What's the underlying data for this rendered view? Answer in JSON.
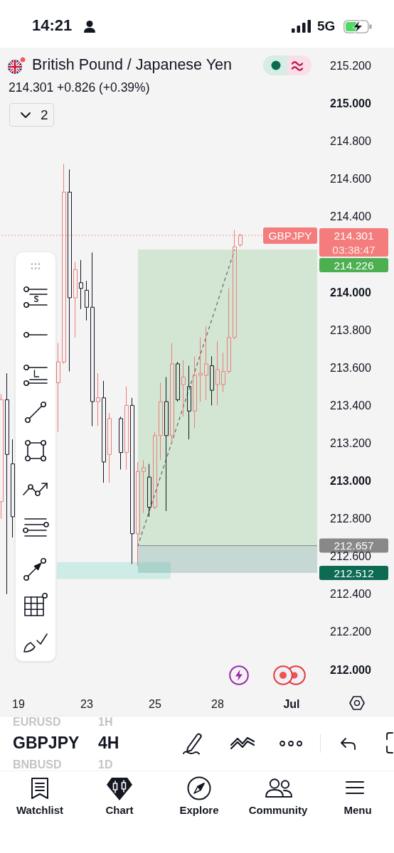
{
  "chart_data": {
    "type": "candlestick",
    "title": "British Pound / Japanese Yen",
    "subtitle": "214.301 +0.826 (+0.39%)",
    "categories": [
      null,
      null,
      null,
      "19",
      null,
      null,
      null,
      null,
      null,
      null,
      null,
      null,
      null,
      null,
      null,
      "23",
      null,
      null,
      null,
      null,
      null,
      null,
      null,
      null,
      null,
      null,
      null,
      "25",
      null,
      null,
      null,
      null,
      null,
      null,
      null,
      null,
      null,
      null,
      "28",
      null,
      null,
      null,
      null,
      null,
      null,
      null,
      null,
      null,
      null,
      null,
      null,
      "Jul",
      null,
      null,
      null,
      null
    ],
    "series": [
      {
        "ohlc": [
          [
            212.89,
            213.46,
            212.8,
            213.43
          ],
          [
            213.43,
            213.57,
            212.4,
            213.14
          ],
          [
            213.09,
            213.22,
            212.7,
            212.81
          ],
          null,
          null,
          null,
          null,
          null,
          null,
          null,
          [
            213.52,
            213.73,
            213.26,
            213.63
          ],
          [
            213.63,
            214.68,
            213.62,
            214.53
          ],
          [
            214.53,
            214.65,
            213.58,
            213.97
          ],
          [
            213.97,
            214.16,
            213.76,
            214.12
          ],
          [
            214.05,
            214.17,
            213.91,
            214.02
          ],
          [
            214.01,
            214.06,
            213.85,
            213.92
          ],
          [
            213.92,
            214.21,
            213.29,
            213.42
          ],
          [
            213.42,
            213.57,
            213.29,
            213.44
          ],
          [
            213.44,
            213.53,
            212.99,
            213.1
          ],
          [
            213.14,
            213.36,
            212.99,
            213.33
          ],
          null,
          [
            213.33,
            213.34,
            213.06,
            213.15
          ],
          [
            213.15,
            213.5,
            213.06,
            213.4
          ],
          [
            213.4,
            213.44,
            212.56,
            212.72
          ],
          [
            212.72,
            213.1,
            212.55,
            213.05
          ],
          [
            213.05,
            213.11,
            212.83,
            213.07
          ],
          [
            213.02,
            213.09,
            212.81,
            212.86
          ],
          [
            212.86,
            213.26,
            212.85,
            213.24
          ],
          [
            213.24,
            213.52,
            213.11,
            213.42
          ],
          [
            213.42,
            213.55,
            212.84,
            213.24
          ],
          [
            213.24,
            213.73,
            213.2,
            213.62
          ],
          [
            213.62,
            213.63,
            213.42,
            213.43
          ],
          [
            213.51,
            213.64,
            213.34,
            213.55
          ],
          [
            213.5,
            213.61,
            213.22,
            213.37
          ],
          [
            213.37,
            213.66,
            213.28,
            213.56
          ],
          [
            213.56,
            213.76,
            213.42,
            213.57
          ],
          [
            213.56,
            213.82,
            213.43,
            213.62
          ],
          [
            213.61,
            213.66,
            213.4,
            213.48
          ],
          [
            213.51,
            213.74,
            213.4,
            213.59
          ],
          [
            213.51,
            213.68,
            213.47,
            213.58
          ],
          [
            213.58,
            214.02,
            213.57,
            213.76
          ],
          [
            213.76,
            214.33,
            213.75,
            214.24
          ],
          [
            214.25,
            214.31,
            214.24,
            214.301
          ],
          null,
          null,
          null,
          null,
          null,
          null,
          null,
          null,
          null,
          null,
          null,
          null,
          null
        ],
        "colors": [
          "#f07c7c",
          "#131722",
          "#131722",
          null,
          null,
          null,
          null,
          null,
          null,
          null,
          "#f07c7c",
          "#f07c7c",
          "#131722",
          "#f07c7c",
          "#131722",
          "#131722",
          "#131722",
          "#f07c7c",
          "#131722",
          "#f07c7c",
          null,
          "#131722",
          "#f07c7c",
          "#131722",
          "#f07c7c",
          "#f07c7c",
          "#131722",
          "#f07c7c",
          "#f07c7c",
          "#131722",
          "#f07c7c",
          "#131722",
          "#f07c7c",
          "#131722",
          "#f07c7c",
          "#f07c7c",
          "#f07c7c",
          "#131722",
          "#f07c7c",
          "#f07c7c",
          "#f07c7c",
          "#f07c7c",
          "#f07c7c",
          null,
          null,
          null,
          null,
          null,
          null,
          null,
          null,
          null,
          null,
          null,
          null,
          null
        ]
      },
      {
        "type": "line",
        "color": "#6f6f6f",
        "line_style": "dashed",
        "marker": "none",
        "values": [
          null,
          null,
          null,
          null,
          null,
          null,
          null,
          null,
          null,
          null,
          null,
          null,
          null,
          null,
          null,
          null,
          null,
          null,
          null,
          null,
          null,
          null,
          null,
          null,
          212.657,
          null,
          null,
          null,
          null,
          null,
          null,
          null,
          null,
          null,
          null,
          null,
          null,
          null,
          null,
          null,
          null,
          214.226,
          null,
          null,
          null,
          null,
          null,
          null,
          null,
          null,
          null,
          null,
          null,
          null,
          null,
          null
        ]
      }
    ],
    "ylim": [
      212,
      215.2
    ],
    "yticks": [
      {
        "value": 212,
        "label": "212.000"
      },
      {
        "value": 212.2,
        "label": "212.200"
      },
      {
        "value": 212.4,
        "label": "212.400"
      },
      {
        "value": 212.6,
        "label": "212.600"
      },
      {
        "value": 212.8,
        "label": "212.800"
      },
      {
        "value": 213,
        "label": "213.000"
      },
      {
        "value": 213.2,
        "label": "213.200"
      },
      {
        "value": 213.4,
        "label": "213.400"
      },
      {
        "value": 213.6,
        "label": "213.600"
      },
      {
        "value": 213.8,
        "label": "213.800"
      },
      {
        "value": 214,
        "label": "214.000"
      },
      {
        "value": 214.4,
        "label": "214.400"
      },
      {
        "value": 214.6,
        "label": "214.600"
      },
      {
        "value": 214.8,
        "label": "214.800"
      },
      {
        "value": 215,
        "label": "215.000"
      },
      {
        "value": 215.2,
        "label": "215.200"
      }
    ],
    "bands": [
      {
        "axis": "y",
        "from": 212.657,
        "to": 214.226,
        "label": "214.226",
        "color": "#4caf50"
      },
      {
        "axis": "y",
        "from": 212.512,
        "to": 212.657,
        "label": "212.512",
        "color": "#0e6b53"
      },
      {
        "axis": "y",
        "from": 212.48,
        "to": 212.57,
        "color": "#3cc8a8"
      }
    ],
    "ref_lines": [
      {
        "axis": "y",
        "value": 214.301,
        "label": "214.301",
        "color": "#f47c7c",
        "line_style": "dotted"
      },
      {
        "axis": "y",
        "value": 212.657,
        "label": "212.657",
        "color": "#888888",
        "line_style": "solid"
      }
    ],
    "annotations": [
      {
        "text": "GBPJPY",
        "y": 214.301
      },
      "03:38:47",
      "14:21",
      "5G",
      "2",
      "EURUSD",
      "1H",
      "GBPJPY",
      "4H",
      "BNBUSD",
      "1D",
      "Watchlist",
      "Chart",
      "Explore",
      "Community",
      "Menu"
    ]
  }
}
